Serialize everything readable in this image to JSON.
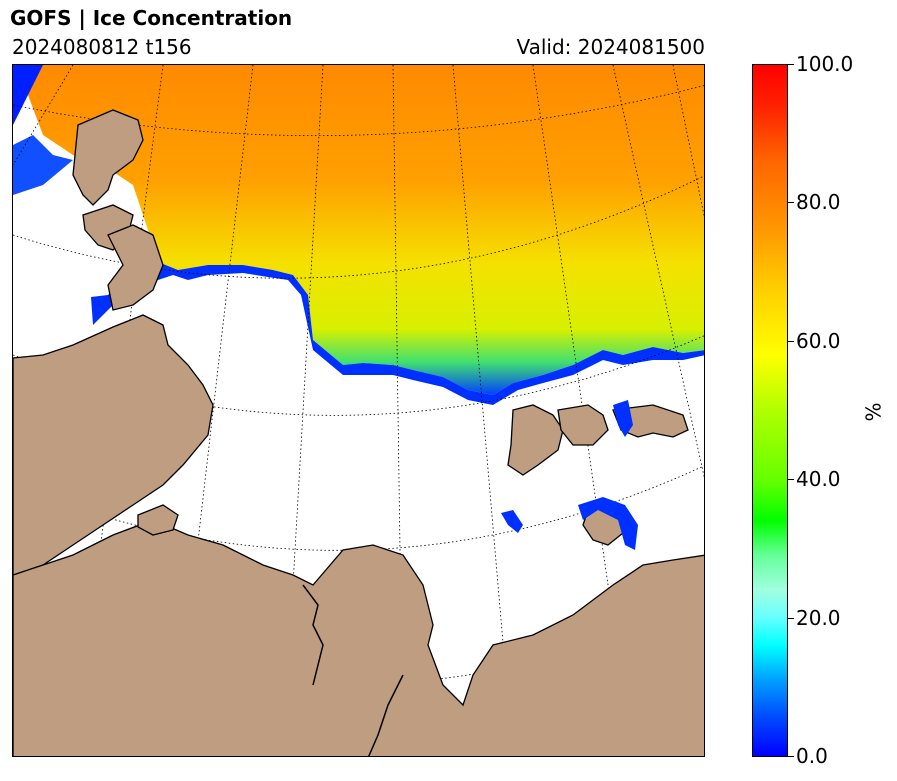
{
  "header": {
    "title": "GOFS  |  Ice Concentration",
    "run_label": "2024080812 t156",
    "valid_label": "Valid: 2024081500"
  },
  "map": {
    "projection": "polar stereographic",
    "land_color": "#bf9d80",
    "ocean_color": "#ffffff",
    "graticule": "dotted",
    "coastline_color": "#000000"
  },
  "colorbar": {
    "ticks": [
      "0.0",
      "20.0",
      "40.0",
      "60.0",
      "80.0",
      "100.0"
    ],
    "min": 0,
    "max": 100,
    "unit": "%",
    "colormap": "jet-like: blue-cyan-green-yellow-orange-red"
  }
}
